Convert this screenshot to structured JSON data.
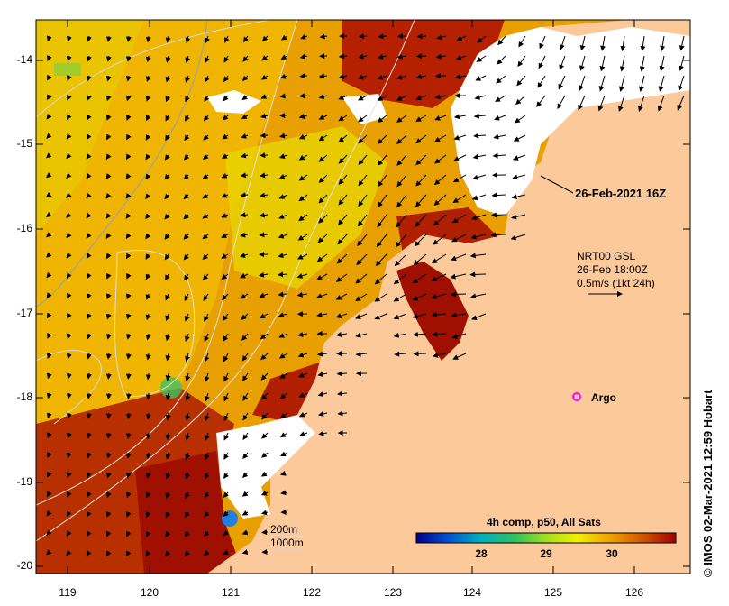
{
  "map": {
    "time_label": "26-Feb-2021 16Z",
    "vector_info": {
      "line1": "NRT00 GSL",
      "line2": "26-Feb 18:00Z",
      "line3": "0.5m/s (1kt 24h)"
    },
    "argo_label": "Argo",
    "isobath_labels": [
      "200m",
      "1000m"
    ],
    "credit": "© IMOS 02-Mar-2021 12:59 Hobart",
    "y_ticks": [
      "-14",
      "-15",
      "-16",
      "-17",
      "-18",
      "-19",
      "-20"
    ],
    "x_ticks": [
      "119",
      "120",
      "121",
      "122",
      "123",
      "124",
      "125",
      "126"
    ],
    "colorbar": {
      "title": "4h comp, p50, All Sats",
      "ticks": [
        "28",
        "29",
        "30"
      ],
      "colors": [
        "#00008b",
        "#0050d0",
        "#00b0c0",
        "#30c060",
        "#a0e020",
        "#f0f000",
        "#f0a000",
        "#d05000",
        "#a00000"
      ]
    },
    "colors": {
      "land": "#fcc99a",
      "cloud": "#ffffff",
      "argo": "#ff00ff",
      "sst_hot": "#a01000",
      "sst_warm": "#e88a00",
      "sst_mid": "#f0c000"
    }
  }
}
